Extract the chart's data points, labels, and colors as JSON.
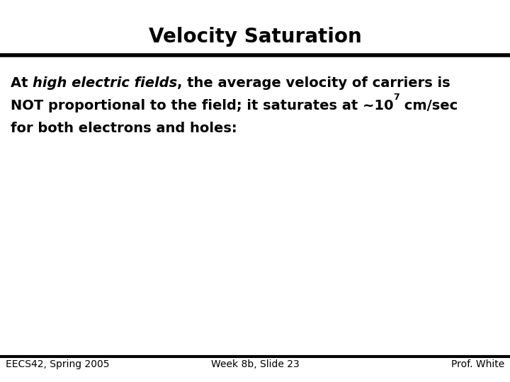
{
  "title": "Velocity Saturation",
  "title_fontsize": 20,
  "background_color": "#ffffff",
  "text_color": "#000000",
  "footer_left": "EECS42, Spring 2005",
  "footer_center": "Week 8b, Slide 23",
  "footer_right": "Prof. White",
  "footer_fontsize": 10,
  "body_fontsize": 14,
  "line1_normal1": "At ",
  "line1_italic": "high electric fields",
  "line1_normal2": ", the average velocity of carriers is",
  "line2_main": "NOT proportional to the field; it saturates at ~10",
  "line2_exp": "7",
  "line2_end": " cm/sec",
  "line3": "for both electrons and holes:"
}
